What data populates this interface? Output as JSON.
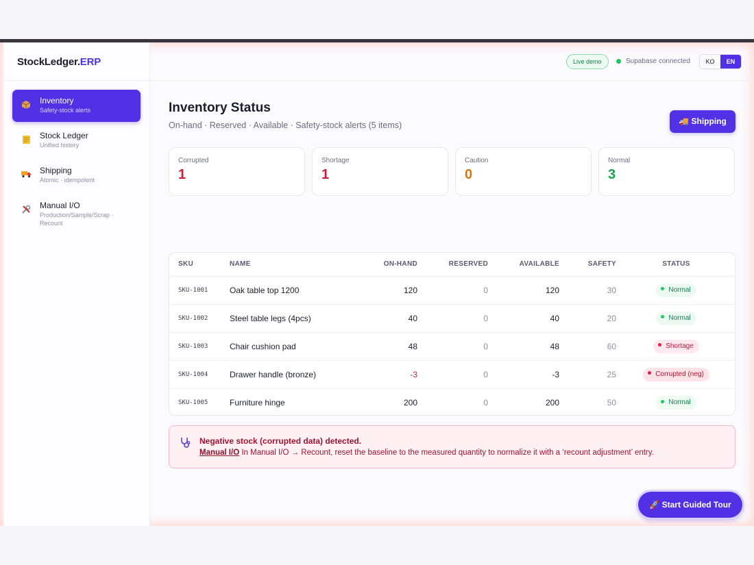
{
  "brand": {
    "name_a": "StockLedger.",
    "name_b": "ERP"
  },
  "header": {
    "live_badge": "Live demo",
    "connection": "Supabase connected",
    "lang_ko": "KO",
    "lang_en": "EN"
  },
  "sidebar": {
    "items": [
      {
        "label": "Inventory",
        "sub": "Safety-stock alerts",
        "icon": "package-icon",
        "active": true
      },
      {
        "label": "Stock Ledger",
        "sub": "Unified history",
        "icon": "ledger-icon",
        "active": false
      },
      {
        "label": "Shipping",
        "sub": "Atomic · idempotent",
        "icon": "truck-icon",
        "active": false
      },
      {
        "label": "Manual I/O",
        "sub": "Production/Sample/Scrap · Recount",
        "icon": "tools-icon",
        "active": false
      }
    ]
  },
  "page": {
    "title": "Inventory Status",
    "subtitle": "On-hand · Reserved · Available · Safety-stock alerts (5 items)",
    "shipping_button": "Shipping"
  },
  "cards": [
    {
      "label": "Corrupted",
      "value": "1",
      "color": "#c81e3a"
    },
    {
      "label": "Shortage",
      "value": "1",
      "color": "#c81e3a"
    },
    {
      "label": "Caution",
      "value": "0",
      "color": "#d97706"
    },
    {
      "label": "Normal",
      "value": "3",
      "color": "#16a34a"
    }
  ],
  "table": {
    "headers": [
      "SKU",
      "NAME",
      "ON-HAND",
      "RESERVED",
      "AVAILABLE",
      "SAFETY",
      "STATUS"
    ],
    "rows": [
      {
        "sku": "SKU-1001",
        "name": "Oak table top 1200",
        "on_hand": "120",
        "reserved": "0",
        "available": "120",
        "safety": "30",
        "status": "Normal",
        "kind": "normal"
      },
      {
        "sku": "SKU-1002",
        "name": "Steel table legs (4pcs)",
        "on_hand": "40",
        "reserved": "0",
        "available": "40",
        "safety": "20",
        "status": "Normal",
        "kind": "normal"
      },
      {
        "sku": "SKU-1003",
        "name": "Chair cushion pad",
        "on_hand": "48",
        "reserved": "0",
        "available": "48",
        "safety": "60",
        "status": "Shortage",
        "kind": "shortage"
      },
      {
        "sku": "SKU-1004",
        "name": "Drawer handle (bronze)",
        "on_hand": "-3",
        "reserved": "0",
        "available": "-3",
        "safety": "25",
        "status": "Corrupted (neg)",
        "kind": "corrupt"
      },
      {
        "sku": "SKU-1005",
        "name": "Furniture hinge",
        "on_hand": "200",
        "reserved": "0",
        "available": "200",
        "safety": "50",
        "status": "Normal",
        "kind": "normal"
      }
    ]
  },
  "alert": {
    "title": "Negative stock (corrupted data) detected.",
    "link": "Manual I/O",
    "body": " In Manual I/O → Recount, reset the baseline to the measured quantity to normalize it with a ‘recount adjustment’ entry."
  },
  "tour_button": "Start Guided Tour",
  "colors": {
    "accent": "#5031e6",
    "danger": "#c81e3a",
    "success": "#16a34a",
    "warning": "#d97706"
  }
}
